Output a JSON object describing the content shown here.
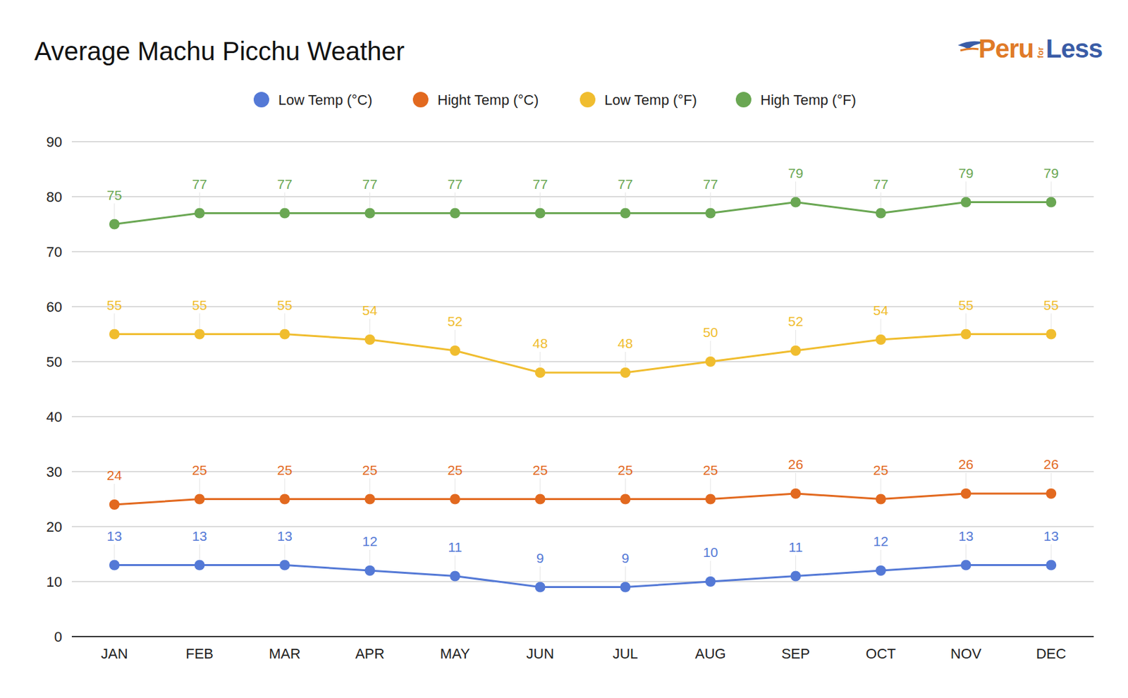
{
  "chart_data": {
    "type": "line",
    "title": "Average Machu Picchu Weather",
    "annotations": [
      "Peru",
      "for",
      "Less"
    ],
    "categories": [
      "JAN",
      "FEB",
      "MAR",
      "APR",
      "MAY",
      "JUN",
      "JUL",
      "AUG",
      "SEP",
      "OCT",
      "NOV",
      "DEC"
    ],
    "series": [
      {
        "name": "Low Temp (°C)",
        "color": "#5479d6",
        "marker": "circle",
        "values": [
          13,
          13,
          13,
          12,
          11,
          9,
          9,
          10,
          11,
          12,
          13,
          13
        ]
      },
      {
        "name": "Hight Temp (°C)",
        "color": "#e2691f",
        "marker": "circle",
        "values": [
          24,
          25,
          25,
          25,
          25,
          25,
          25,
          25,
          26,
          25,
          26,
          26
        ]
      },
      {
        "name": "Low Temp (°F)",
        "color": "#f0bd2f",
        "marker": "circle",
        "values": [
          55,
          55,
          55,
          54,
          52,
          48,
          48,
          50,
          52,
          54,
          55,
          55
        ]
      },
      {
        "name": "High Temp (°F)",
        "color": "#6aa753",
        "marker": "circle",
        "values": [
          75,
          77,
          77,
          77,
          77,
          77,
          77,
          77,
          79,
          77,
          79,
          79
        ]
      }
    ],
    "ylim": [
      0,
      90
    ],
    "yticks": [
      0,
      10,
      20,
      30,
      40,
      50,
      60,
      70,
      80,
      90
    ],
    "grid": true,
    "legend": "top",
    "data_labels": true
  }
}
